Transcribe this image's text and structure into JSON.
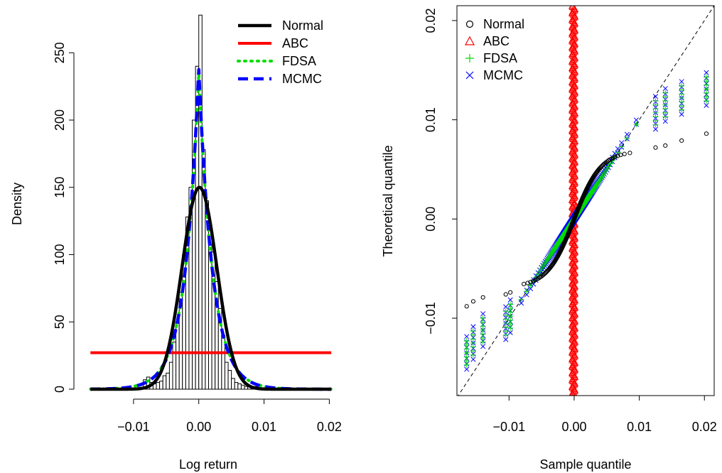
{
  "chart_data": [
    {
      "type": "histogram",
      "xlabel": "Log return",
      "ylabel": "Density",
      "xlim": [
        -0.0175,
        0.0205
      ],
      "ylim": [
        0,
        285
      ],
      "x_ticks": [
        -0.01,
        0.0,
        0.01,
        0.02
      ],
      "x_tick_labels": [
        "−0.01",
        "0.00",
        "0.01",
        "0.02"
      ],
      "y_ticks": [
        0,
        50,
        100,
        150,
        200,
        250
      ],
      "y_tick_labels": [
        "0",
        "50",
        "100",
        "150",
        "200",
        "250"
      ],
      "legend_position": "top-right",
      "histogram": {
        "bin_width": 0.0005,
        "bin_starts": [
          -0.0085,
          -0.008,
          -0.0075,
          -0.007,
          -0.0065,
          -0.006,
          -0.0055,
          -0.005,
          -0.0045,
          -0.004,
          -0.0035,
          -0.003,
          -0.0025,
          -0.002,
          -0.0015,
          -0.001,
          -0.0005,
          0.0,
          0.0005,
          0.001,
          0.0015,
          0.002,
          0.0025,
          0.003,
          0.0035,
          0.004,
          0.0045,
          0.005,
          0.0055,
          0.006,
          0.0065,
          0.007,
          0.0075,
          0.008,
          0.0085,
          0.009,
          0.0095
        ],
        "densities": [
          7,
          9,
          5,
          4,
          5,
          6,
          10,
          12,
          20,
          35,
          50,
          72,
          100,
          128,
          150,
          200,
          240,
          278,
          178,
          140,
          118,
          102,
          80,
          60,
          40,
          20,
          14,
          8,
          5,
          4,
          3,
          2,
          2,
          1,
          2,
          1,
          1
        ]
      },
      "series": [
        {
          "name": "Normal",
          "kind": "normal",
          "mean": 0.0001,
          "sd": 0.00266,
          "color": "#000000",
          "style": "solid"
        },
        {
          "name": "ABC",
          "kind": "uniform",
          "low": -0.0166,
          "high": 0.0203,
          "color": "#ff0000",
          "style": "solid"
        },
        {
          "name": "FDSA",
          "kind": "laplace",
          "location": 0.0,
          "scale": 0.00213,
          "color": "#00dd00",
          "style": "dotted"
        },
        {
          "name": "MCMC",
          "kind": "laplace",
          "location": 0.0,
          "scale": 0.0021,
          "color": "#0000ff",
          "style": "dashed"
        }
      ]
    },
    {
      "type": "scatter",
      "xlabel": "Sample quantile",
      "ylabel": "Theoretical quantile",
      "xlim": [
        -0.018,
        0.0215
      ],
      "ylim": [
        -0.0178,
        0.0215
      ],
      "x_ticks": [
        -0.01,
        0.0,
        0.01,
        0.02
      ],
      "x_tick_labels": [
        "−0.01",
        "0.00",
        "0.01",
        "0.02"
      ],
      "y_ticks": [
        -0.01,
        0.0,
        0.01,
        0.02
      ],
      "y_tick_labels": [
        "−0.01",
        "0.00",
        "0.01",
        "0.02"
      ],
      "reference_line": "y = x (dashed)",
      "legend_position": "top-left",
      "series": [
        {
          "name": "Normal",
          "marker": "circle",
          "color": "#000000"
        },
        {
          "name": "ABC",
          "marker": "triangle",
          "color": "#ff0000"
        },
        {
          "name": "FDSA",
          "marker": "plus",
          "color": "#00dd00"
        },
        {
          "name": "MCMC",
          "marker": "cross",
          "color": "#0000ff"
        }
      ],
      "abc_x_range": [
        -0.0003,
        0.0001
      ],
      "tail_sample_points": [
        -0.0165,
        -0.0155,
        -0.014,
        -0.0105,
        -0.0098,
        0.0125,
        0.014,
        0.0165,
        0.0203
      ],
      "tail_values": {
        "Normal": [
          -0.0088,
          -0.0083,
          -0.0079,
          -0.0076,
          -0.0074,
          0.0072,
          0.0074,
          0.0079,
          0.0086
        ],
        "MCMC": [
          -0.0135,
          -0.0125,
          -0.0112,
          -0.0105,
          -0.0098,
          0.0107,
          0.0115,
          0.0122,
          0.0131
        ]
      }
    }
  ]
}
